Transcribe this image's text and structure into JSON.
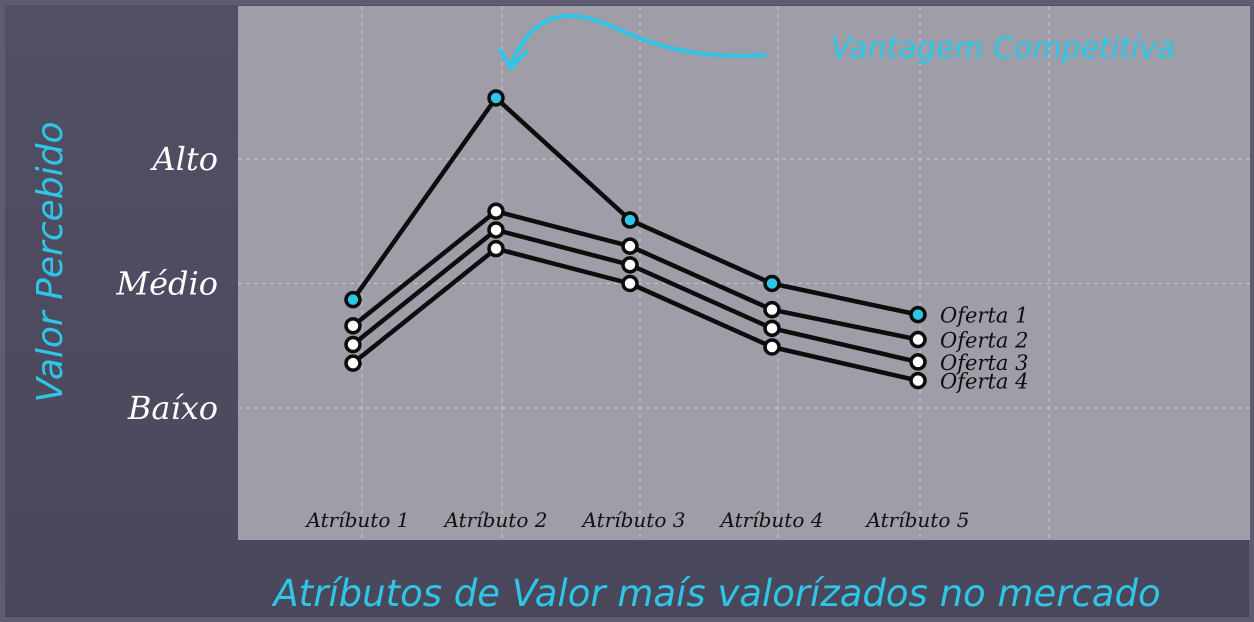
{
  "chart_data": {
    "type": "line",
    "ylabel": "Valor Percebido",
    "xlabel": "Atríbutos de Valor maís valorízados no mercado",
    "categories": [
      "Atríbuto 1",
      "Atríbuto 2",
      "Atríbuto 3",
      "Atríbuto 4",
      "Atríbuto 5"
    ],
    "y_ticks": [
      {
        "label": "Alto",
        "value": 3
      },
      {
        "label": "Médio",
        "value": 2
      },
      {
        "label": "Baíxo",
        "value": 1
      }
    ],
    "ylim": [
      0,
      4
    ],
    "grid": true,
    "legend_placement": "right-end-of-lines",
    "series": [
      {
        "name": "Oferta 1",
        "values": [
          1.87,
          3.49,
          2.51,
          2.0,
          1.75
        ],
        "highlight": true
      },
      {
        "name": "Oferta 2",
        "values": [
          1.66,
          2.58,
          2.3,
          1.79,
          1.55
        ]
      },
      {
        "name": "Oferta 3",
        "values": [
          1.51,
          2.43,
          2.15,
          1.64,
          1.37
        ]
      },
      {
        "name": "Oferta 4",
        "values": [
          1.36,
          2.28,
          2.0,
          1.49,
          1.22
        ]
      }
    ],
    "annotation": {
      "text": "Vantagem Competitíva",
      "target_series": 0,
      "target_category": 1
    },
    "colors": {
      "plot_background": "#9f9da8",
      "page_background": "#4d4a5e",
      "accent": "#2ec6e6",
      "line": "#0d0d0d",
      "marker_fill": "#ffffff",
      "highlight_marker_fill": "#2ec6e6",
      "tick_text": "#ffffff",
      "category_text": "#111111",
      "grid": "#c7c5cf"
    }
  }
}
